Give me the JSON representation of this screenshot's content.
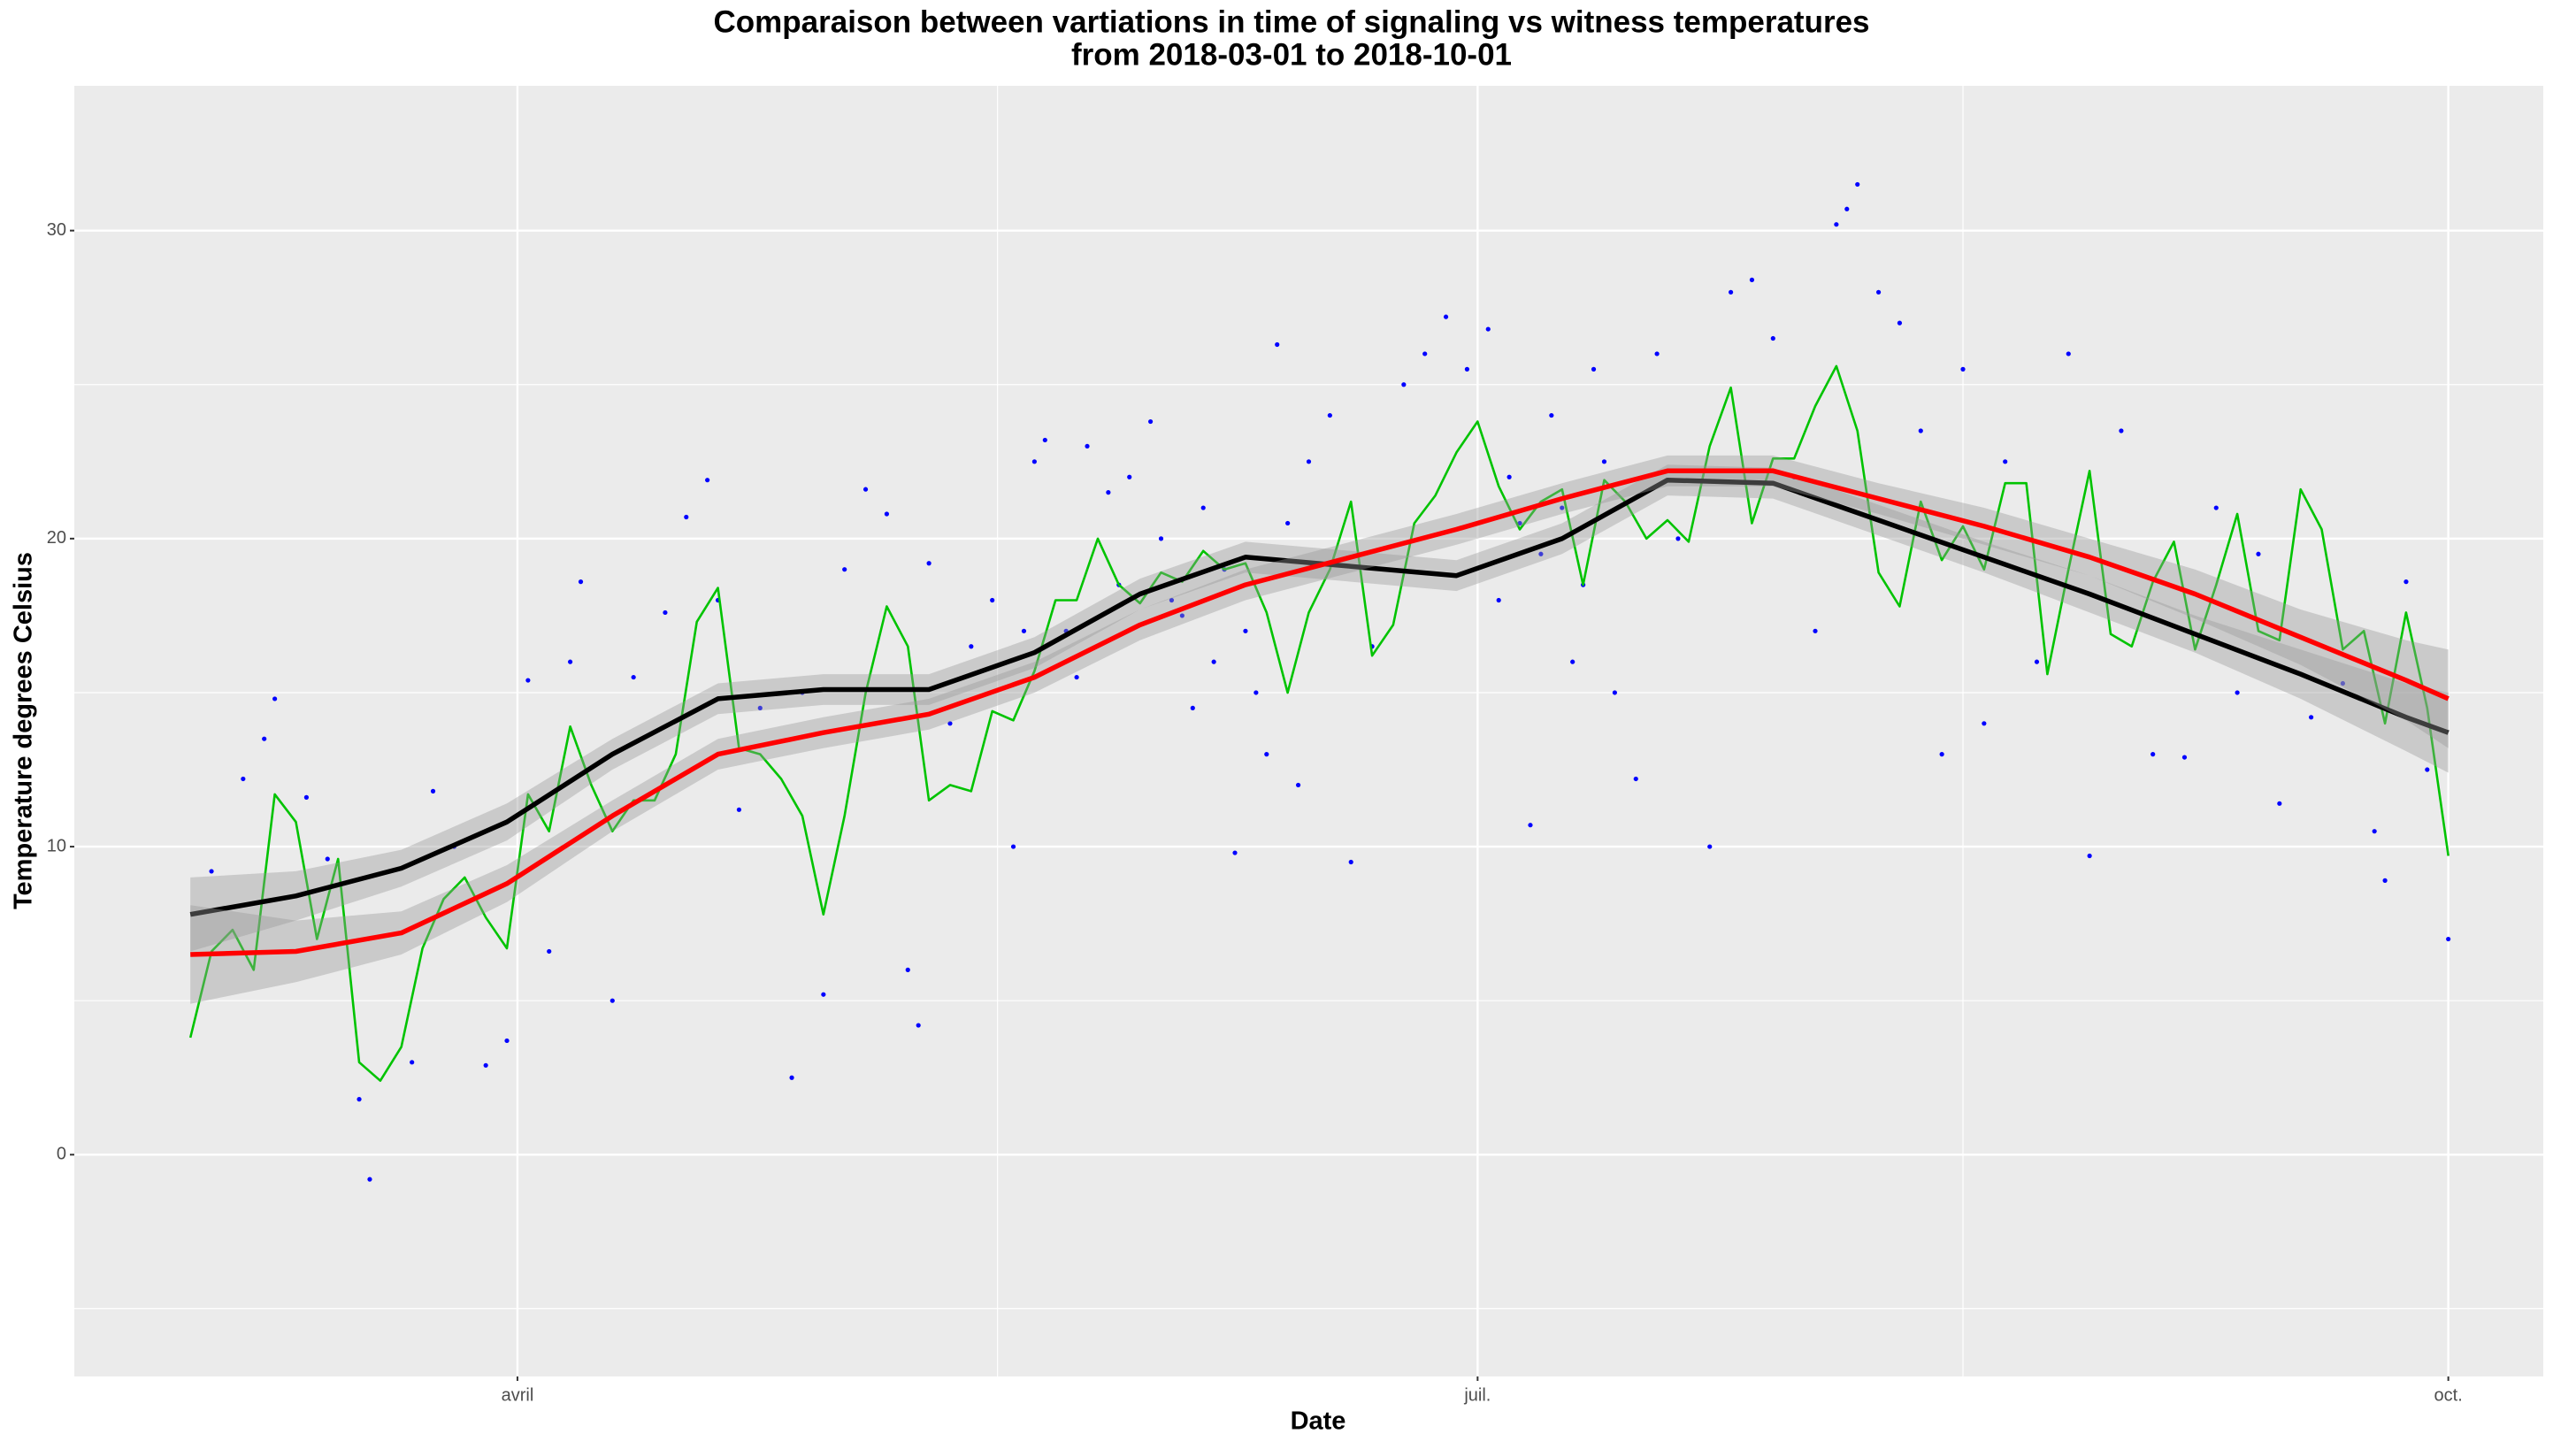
{
  "chart_data": {
    "type": "line",
    "title": [
      "Comparaison between vartiations in time of signaling vs witness temperatures",
      "from 2018-03-01 to 2018-10-01"
    ],
    "x_label": "Date",
    "y_label": "Temperature degrees Celsius",
    "xlim": [
      "2018-02-18",
      "2018-10-10"
    ],
    "xticks": [
      {
        "value": "2018-04-01",
        "label": "avril"
      },
      {
        "value": "2018-07-01",
        "label": "juil."
      },
      {
        "value": "2018-10-01",
        "label": "oct."
      }
    ],
    "ylim": [
      -7.2,
      34.7
    ],
    "yticks": [
      0,
      10,
      20,
      30
    ],
    "grid": true,
    "background": "#ebebeb",
    "series": [
      {
        "type": "scatter",
        "color": "#0000ff",
        "x": [
          "2018-03-03",
          "2018-03-06",
          "2018-03-08",
          "2018-03-09",
          "2018-03-12",
          "2018-03-14",
          "2018-03-17",
          "2018-03-18",
          "2018-03-22",
          "2018-03-24",
          "2018-03-26",
          "2018-03-29",
          "2018-03-31",
          "2018-04-02",
          "2018-04-04",
          "2018-04-06",
          "2018-04-07",
          "2018-04-10",
          "2018-04-12",
          "2018-04-15",
          "2018-04-17",
          "2018-04-19",
          "2018-04-20",
          "2018-04-22",
          "2018-04-24",
          "2018-04-27",
          "2018-04-28",
          "2018-04-30",
          "2018-05-02",
          "2018-05-04",
          "2018-05-06",
          "2018-05-08",
          "2018-05-09",
          "2018-05-10",
          "2018-05-12",
          "2018-05-14",
          "2018-05-16",
          "2018-05-18",
          "2018-05-20",
          "2018-05-21",
          "2018-05-23",
          "2018-05-25",
          "2018-05-27",
          "2018-05-29",
          "2018-05-31",
          "2018-06-02",
          "2018-06-04",
          "2018-06-06",
          "2018-06-08",
          "2018-06-10",
          "2018-06-12",
          "2018-06-14",
          "2018-06-15",
          "2018-06-17",
          "2018-06-19",
          "2018-06-21",
          "2018-06-24",
          "2018-06-26",
          "2018-06-28",
          "2018-06-30",
          "2018-07-02",
          "2018-07-04",
          "2018-07-06",
          "2018-07-08",
          "2018-07-10",
          "2018-07-12",
          "2018-07-14",
          "2018-07-16",
          "2018-07-18",
          "2018-07-20",
          "2018-07-23",
          "2018-07-25",
          "2018-07-27",
          "2018-07-29",
          "2018-07-31",
          "2018-08-02",
          "2018-08-04",
          "2018-08-05",
          "2018-08-06",
          "2018-08-08",
          "2018-08-10",
          "2018-08-12",
          "2018-08-14",
          "2018-08-16",
          "2018-08-18",
          "2018-08-20",
          "2018-08-23",
          "2018-08-26",
          "2018-08-28",
          "2018-08-31",
          "2018-09-03",
          "2018-09-06",
          "2018-09-09",
          "2018-09-11",
          "2018-09-13",
          "2018-09-15",
          "2018-09-18",
          "2018-09-21",
          "2018-09-24",
          "2018-09-25",
          "2018-09-27",
          "2018-09-29",
          "2018-10-01",
          "2018-05-19",
          "2018-05-24",
          "2018-05-28",
          "2018-06-01",
          "2018-06-03",
          "2018-06-05",
          "2018-06-07",
          "2018-06-09",
          "2018-06-11",
          "2018-06-13",
          "2018-07-03",
          "2018-07-05",
          "2018-07-07",
          "2018-07-09",
          "2018-07-11",
          "2018-07-13"
        ],
        "values": [
          9.2,
          12.2,
          13.5,
          14.8,
          11.6,
          9.6,
          1.8,
          -0.8,
          3.0,
          11.8,
          10.0,
          2.9,
          3.7,
          15.4,
          6.6,
          16.0,
          18.6,
          5.0,
          15.5,
          17.6,
          20.7,
          21.9,
          18.0,
          11.2,
          14.5,
          2.5,
          15.0,
          5.2,
          19.0,
          21.6,
          20.8,
          6.0,
          4.2,
          19.2,
          14.0,
          16.5,
          18.0,
          10.0,
          22.5,
          23.2,
          17.0,
          23.0,
          21.5,
          22.0,
          23.8,
          18.0,
          14.5,
          16.0,
          9.8,
          15.0,
          26.3,
          12.0,
          22.5,
          24.0,
          9.5,
          16.5,
          25.0,
          26.0,
          27.2,
          25.5,
          26.8,
          22.0,
          10.7,
          24.0,
          16.0,
          25.5,
          15.0,
          12.2,
          26.0,
          20.0,
          10.0,
          28.0,
          28.4,
          26.5,
          22.0,
          17.0,
          30.2,
          30.7,
          31.5,
          28.0,
          27.0,
          23.5,
          13.0,
          25.5,
          14.0,
          22.5,
          16.0,
          26.0,
          9.7,
          23.5,
          13.0,
          12.9,
          21.0,
          15.0,
          19.5,
          11.4,
          14.2,
          15.3,
          10.5,
          8.9,
          18.6,
          12.5,
          7.0,
          17.0,
          15.5,
          18.5,
          20.0,
          17.5,
          21.0,
          19.0,
          17.0,
          13.0,
          20.5,
          18.0,
          20.5,
          19.5,
          21.0,
          18.5,
          22.5
        ]
      },
      {
        "type": "line",
        "color": "#00c300",
        "x": [
          "2018-03-01",
          "2018-03-03",
          "2018-03-05",
          "2018-03-07",
          "2018-03-09",
          "2018-03-11",
          "2018-03-13",
          "2018-03-15",
          "2018-03-17",
          "2018-03-19",
          "2018-03-21",
          "2018-03-23",
          "2018-03-25",
          "2018-03-27",
          "2018-03-29",
          "2018-03-31",
          "2018-04-02",
          "2018-04-04",
          "2018-04-06",
          "2018-04-08",
          "2018-04-10",
          "2018-04-12",
          "2018-04-14",
          "2018-04-16",
          "2018-04-18",
          "2018-04-20",
          "2018-04-22",
          "2018-04-24",
          "2018-04-26",
          "2018-04-28",
          "2018-04-30",
          "2018-05-02",
          "2018-05-04",
          "2018-05-06",
          "2018-05-08",
          "2018-05-10",
          "2018-05-12",
          "2018-05-14",
          "2018-05-16",
          "2018-05-18",
          "2018-05-20",
          "2018-05-22",
          "2018-05-24",
          "2018-05-26",
          "2018-05-28",
          "2018-05-30",
          "2018-06-01",
          "2018-06-03",
          "2018-06-05",
          "2018-06-07",
          "2018-06-09",
          "2018-06-11",
          "2018-06-13",
          "2018-06-15",
          "2018-06-17",
          "2018-06-19",
          "2018-06-21",
          "2018-06-23",
          "2018-06-25",
          "2018-06-27",
          "2018-06-29",
          "2018-07-01",
          "2018-07-03",
          "2018-07-05",
          "2018-07-07",
          "2018-07-09",
          "2018-07-11",
          "2018-07-13",
          "2018-07-15",
          "2018-07-17",
          "2018-07-19",
          "2018-07-21",
          "2018-07-23",
          "2018-07-25",
          "2018-07-27",
          "2018-07-29",
          "2018-07-31",
          "2018-08-02",
          "2018-08-04",
          "2018-08-06",
          "2018-08-08",
          "2018-08-10",
          "2018-08-12",
          "2018-08-14",
          "2018-08-16",
          "2018-08-18",
          "2018-08-20",
          "2018-08-22",
          "2018-08-24",
          "2018-08-26",
          "2018-08-28",
          "2018-08-30",
          "2018-09-01",
          "2018-09-03",
          "2018-09-05",
          "2018-09-07",
          "2018-09-09",
          "2018-09-11",
          "2018-09-13",
          "2018-09-15",
          "2018-09-17",
          "2018-09-19",
          "2018-09-21",
          "2018-09-23",
          "2018-09-25",
          "2018-09-27",
          "2018-09-29",
          "2018-10-01"
        ],
        "values": [
          3.8,
          6.6,
          7.3,
          6.0,
          11.7,
          10.8,
          7.0,
          9.6,
          3.0,
          2.4,
          3.5,
          6.7,
          8.3,
          9.0,
          7.7,
          6.7,
          11.7,
          10.5,
          13.9,
          12.0,
          10.5,
          11.5,
          11.5,
          13.0,
          17.3,
          18.4,
          13.2,
          13.0,
          12.2,
          11.0,
          7.8,
          11.0,
          15.0,
          17.8,
          16.5,
          11.5,
          12.0,
          11.8,
          14.4,
          14.1,
          15.7,
          18.0,
          18.0,
          20.0,
          18.5,
          17.9,
          18.9,
          18.6,
          19.6,
          19.0,
          19.2,
          17.6,
          15.0,
          17.6,
          19.0,
          21.2,
          16.2,
          17.2,
          20.5,
          21.4,
          22.8,
          23.8,
          21.7,
          20.3,
          21.2,
          21.6,
          18.5,
          21.9,
          21.2,
          20.0,
          20.6,
          19.9,
          23.0,
          24.9,
          20.5,
          22.6,
          22.6,
          24.3,
          25.6,
          23.5,
          18.9,
          17.8,
          21.2,
          19.3,
          20.4,
          19.0,
          21.8,
          21.8,
          15.6,
          19.0,
          22.2,
          16.9,
          16.5,
          18.6,
          19.9,
          16.4,
          18.5,
          20.8,
          17.0,
          16.7,
          21.6,
          20.3,
          16.4,
          17.0,
          14.0,
          17.6,
          14.5,
          9.7
        ]
      },
      {
        "type": "smooth",
        "color": "#000000",
        "x": [
          "2018-03-01",
          "2018-03-11",
          "2018-03-21",
          "2018-03-31",
          "2018-04-10",
          "2018-04-20",
          "2018-04-30",
          "2018-05-10",
          "2018-05-20",
          "2018-05-30",
          "2018-06-09",
          "2018-06-19",
          "2018-06-29",
          "2018-07-09",
          "2018-07-19",
          "2018-07-29",
          "2018-08-08",
          "2018-08-18",
          "2018-08-28",
          "2018-09-07",
          "2018-09-17",
          "2018-09-27",
          "2018-10-01"
        ],
        "values": [
          7.8,
          8.4,
          9.3,
          10.8,
          13.0,
          14.8,
          15.1,
          15.1,
          16.3,
          18.2,
          19.4,
          19.1,
          18.8,
          20.0,
          21.9,
          21.8,
          20.6,
          19.4,
          18.2,
          16.9,
          15.6,
          14.2,
          13.7
        ],
        "lower": [
          6.6,
          7.6,
          8.7,
          10.2,
          12.5,
          14.3,
          14.6,
          14.6,
          15.8,
          17.7,
          18.9,
          18.6,
          18.3,
          19.5,
          21.4,
          21.3,
          20.1,
          18.9,
          17.6,
          16.3,
          14.8,
          13.1,
          12.4
        ],
        "upper": [
          9.0,
          9.2,
          9.9,
          11.4,
          13.5,
          15.3,
          15.6,
          15.6,
          16.8,
          18.7,
          19.9,
          19.6,
          19.3,
          20.5,
          22.4,
          22.3,
          21.1,
          19.9,
          18.8,
          17.5,
          16.4,
          15.3,
          15.0
        ]
      },
      {
        "type": "smooth",
        "color": "#ff0000",
        "x": [
          "2018-03-01",
          "2018-03-11",
          "2018-03-21",
          "2018-03-31",
          "2018-04-10",
          "2018-04-20",
          "2018-04-30",
          "2018-05-10",
          "2018-05-20",
          "2018-05-30",
          "2018-06-09",
          "2018-06-19",
          "2018-06-29",
          "2018-07-09",
          "2018-07-19",
          "2018-07-29",
          "2018-08-08",
          "2018-08-18",
          "2018-08-28",
          "2018-09-07",
          "2018-09-17",
          "2018-09-27",
          "2018-10-01"
        ],
        "values": [
          6.5,
          6.6,
          7.2,
          8.8,
          11.0,
          13.0,
          13.7,
          14.3,
          15.5,
          17.2,
          18.5,
          19.4,
          20.3,
          21.3,
          22.2,
          22.2,
          21.3,
          20.4,
          19.4,
          18.2,
          16.8,
          15.4,
          14.8
        ],
        "lower": [
          4.9,
          5.6,
          6.5,
          8.2,
          10.5,
          12.5,
          13.2,
          13.8,
          15.0,
          16.7,
          18.0,
          18.9,
          19.8,
          20.8,
          21.7,
          21.7,
          20.8,
          19.8,
          18.8,
          17.4,
          15.9,
          14.1,
          13.2
        ],
        "upper": [
          8.1,
          7.6,
          7.9,
          9.4,
          11.5,
          13.5,
          14.2,
          14.8,
          16.0,
          17.7,
          19.0,
          19.9,
          20.8,
          21.8,
          22.7,
          22.7,
          21.8,
          21.0,
          20.0,
          19.0,
          17.7,
          16.7,
          16.4
        ]
      }
    ]
  }
}
